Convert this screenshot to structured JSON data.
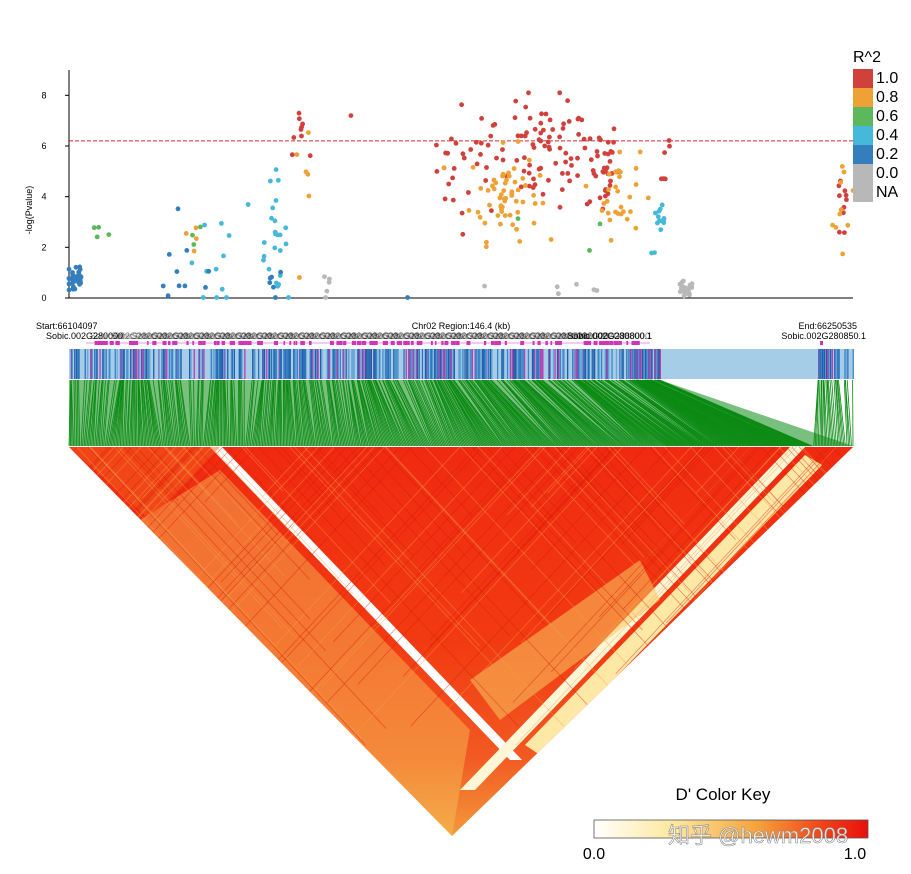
{
  "chart_data": [
    {
      "type": "scatter",
      "title": "",
      "xlabel": "",
      "ylabel": "-log(Pvalue)",
      "ylim": [
        0,
        9
      ],
      "yticks": [
        0,
        2,
        4,
        6,
        8
      ],
      "threshold": 6.2,
      "legend": {
        "title": "R^2",
        "position": "top-right",
        "entries": [
          {
            "label": "1.0",
            "color": "#d0413c"
          },
          {
            "label": "0.8",
            "color": "#eea236"
          },
          {
            "label": "0.6",
            "color": "#5cb85c"
          },
          {
            "label": "0.4",
            "color": "#46b8da"
          },
          {
            "label": "0.2",
            "color": "#357ebd"
          },
          {
            "label": "0.0",
            "color": "#b8b8b8"
          },
          {
            "label": "NA",
            "color": "#b8b8b8"
          }
        ]
      },
      "x_range": [
        0,
        1000
      ],
      "series": [
        {
          "name": "1.0",
          "color": "#d0413c",
          "clusters": [
            {
              "x": 295,
              "y": 6.6,
              "xs": 4,
              "ys": 0.5,
              "n": 6
            },
            {
              "x": 510,
              "y": 5.4,
              "xs": 25,
              "ys": 1.1,
              "n": 30
            },
            {
              "x": 605,
              "y": 5.6,
              "xs": 30,
              "ys": 1.0,
              "n": 65
            },
            {
              "x": 625,
              "y": 7.4,
              "xs": 10,
              "ys": 0.5,
              "n": 5
            },
            {
              "x": 680,
              "y": 5.2,
              "xs": 10,
              "ys": 1.0,
              "n": 35
            },
            {
              "x": 760,
              "y": 5.8,
              "xs": 5,
              "ys": 1.0,
              "n": 6
            },
            {
              "x": 990,
              "y": 3.7,
              "xs": 8,
              "ys": 0.9,
              "n": 10
            },
            {
              "x": 350,
              "y": 6.5,
              "xs": 30,
              "ys": 1.0,
              "n": 4
            }
          ]
        },
        {
          "name": "0.8",
          "color": "#eea236",
          "clusters": [
            {
              "x": 555,
              "y": 4.1,
              "xs": 22,
              "ys": 0.9,
              "n": 60
            },
            {
              "x": 700,
              "y": 4.2,
              "xs": 14,
              "ys": 0.9,
              "n": 30
            },
            {
              "x": 990,
              "y": 3.3,
              "xs": 8,
              "ys": 1.1,
              "n": 10
            },
            {
              "x": 300,
              "y": 4.2,
              "xs": 6,
              "ys": 1.0,
              "n": 6
            },
            {
              "x": 160,
              "y": 2.6,
              "xs": 10,
              "ys": 0.6,
              "n": 4
            }
          ]
        },
        {
          "name": "0.6",
          "color": "#5cb85c",
          "clusters": [
            {
              "x": 40,
              "y": 2.6,
              "xs": 8,
              "ys": 0.4,
              "n": 4
            },
            {
              "x": 162,
              "y": 2.6,
              "xs": 6,
              "ys": 0.5,
              "n": 3
            },
            {
              "x": 660,
              "y": 2.5,
              "xs": 50,
              "ys": 0.5,
              "n": 3
            }
          ]
        },
        {
          "name": "0.4",
          "color": "#46b8da",
          "clusters": [
            {
              "x": 200,
              "y": 1.5,
              "xs": 30,
              "ys": 1.0,
              "n": 14
            },
            {
              "x": 262,
              "y": 2.5,
              "xs": 8,
              "ys": 1.1,
              "n": 22
            },
            {
              "x": 755,
              "y": 2.7,
              "xs": 6,
              "ys": 0.5,
              "n": 14
            }
          ]
        },
        {
          "name": "0.2",
          "color": "#357ebd",
          "clusters": [
            {
              "x": 8,
              "y": 0.8,
              "xs": 6,
              "ys": 0.4,
              "n": 32
            },
            {
              "x": 150,
              "y": 0.9,
              "xs": 25,
              "ys": 0.8,
              "n": 10
            },
            {
              "x": 262,
              "y": 0.5,
              "xs": 8,
              "ys": 0.4,
              "n": 6
            },
            {
              "x": 430,
              "y": 0.03,
              "xs": 2,
              "ys": 0.02,
              "n": 1
            }
          ]
        },
        {
          "name": "0.0",
          "color": "#b8b8b8",
          "clusters": [
            {
              "x": 785,
              "y": 0.25,
              "xs": 6,
              "ys": 0.2,
              "n": 20
            },
            {
              "x": 330,
              "y": 0.4,
              "xs": 3,
              "ys": 0.3,
              "n": 5
            },
            {
              "x": 620,
              "y": 0.4,
              "xs": 60,
              "ys": 0.3,
              "n": 6
            }
          ]
        }
      ]
    },
    {
      "type": "heatmap",
      "title": "Chr02 Region:146.4 (kb)",
      "start_label": "Start:66104097",
      "end_label": "End:66250535",
      "gene_labels": [
        "Sobic.002G280000",
        "Sobic.002G280800.1",
        "Sobic.002G280850.1"
      ],
      "color_key": {
        "title": "D' Color Key",
        "min_label": "0.0",
        "max_label": "1.0"
      }
    }
  ],
  "watermark": "知乎 @hewm2008"
}
